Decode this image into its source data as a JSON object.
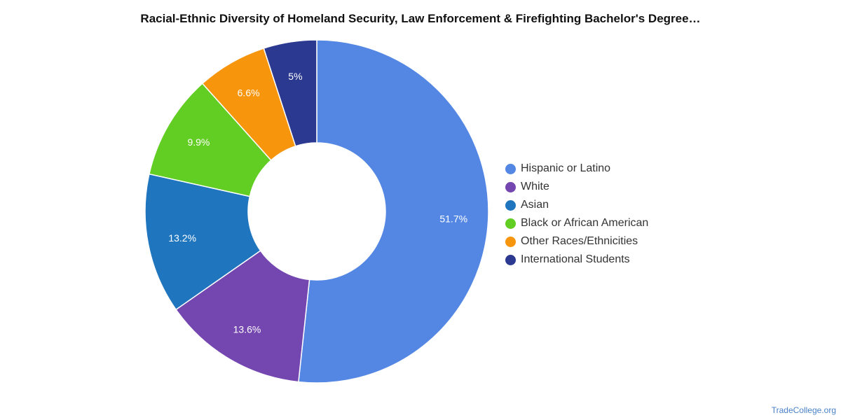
{
  "chart_data": {
    "type": "pie",
    "title": "Racial-Ethnic Diversity of Homeland Security, Law Enforcement & Firefighting Bachelor's Degree…",
    "donut": true,
    "legend_position": "right",
    "categories": [
      "Hispanic or Latino",
      "White",
      "Asian",
      "Black or African American",
      "Other Races/Ethnicities",
      "International Students"
    ],
    "values": [
      51.7,
      13.6,
      13.2,
      9.9,
      6.6,
      5.0
    ],
    "labels": [
      "51.7%",
      "13.6%",
      "13.2%",
      "9.9%",
      "6.6%",
      "5%"
    ],
    "colors": [
      "#5487e3",
      "#7446b0",
      "#1f75be",
      "#62cd23",
      "#f7950c",
      "#2b3990"
    ]
  },
  "credit": "TradeCollege.org"
}
